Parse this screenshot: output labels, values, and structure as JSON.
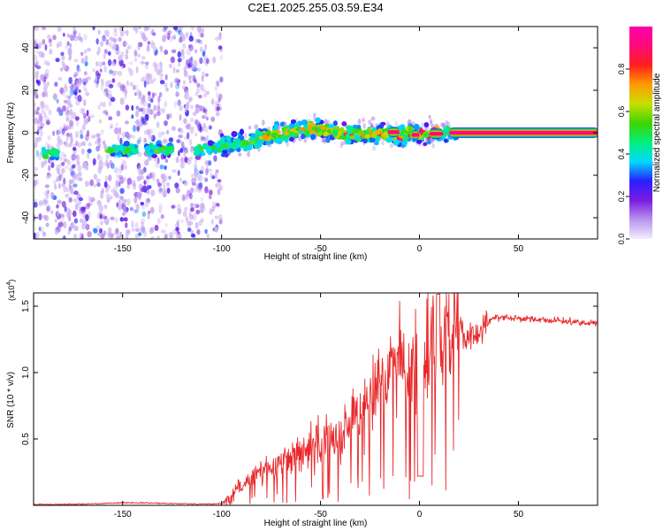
{
  "figure_title": "C2E1.2025.255.03.59.E34",
  "chart_data": [
    {
      "type": "heatmap",
      "name": "spectrogram",
      "title": "C2E1.2025.255.03.59.E34",
      "xlabel": "Height of straight line (km)",
      "ylabel": "Frequency (Hz)",
      "xlim": [
        -195,
        90
      ],
      "ylim": [
        -50,
        50
      ],
      "xticks": [
        -150,
        -100,
        -50,
        0,
        50
      ],
      "xtick_labels": [
        "-150",
        "-100",
        "-50",
        "0",
        "50"
      ],
      "yticks": [
        -40,
        -20,
        0,
        20,
        40
      ],
      "ytick_labels": [
        "-40",
        "-20",
        "0",
        "20",
        "40"
      ],
      "colorbar": {
        "label": "Normalized spectral amplitude",
        "range": [
          0,
          1
        ],
        "ticks": [
          0.0,
          0.2,
          0.4,
          0.6,
          0.8
        ],
        "tick_labels": [
          "0.0",
          "0.2",
          "0.4",
          "0.6",
          "0.8"
        ],
        "colors": [
          "#f4eefb",
          "#b894ee",
          "#7a1be0",
          "#2a1fff",
          "#00d9ff",
          "#00f07a",
          "#3fd400",
          "#c6e000",
          "#ff9a00",
          "#ff2020",
          "#ff0a7a",
          "#ff00a8"
        ]
      },
      "ridge": {
        "description_points_x": [
          -185,
          -150,
          -110,
          -90,
          -70,
          -55,
          -40,
          -25,
          -15,
          -10,
          -5,
          0,
          10,
          20,
          90
        ],
        "description_points_y": [
          -10,
          -8,
          -8,
          -5,
          0,
          2,
          0,
          -1,
          0,
          -2,
          0,
          -1,
          0,
          0,
          0
        ]
      }
    },
    {
      "type": "line",
      "name": "snr",
      "xlabel": "Height of straight line (km)",
      "ylabel": "SNR (10 * v/v)",
      "y_multiplier_label": "(x10",
      "y_multiplier_exponent": "4",
      "y_multiplier_close": ")",
      "xlim": [
        -195,
        90
      ],
      "ylim": [
        0,
        16000
      ],
      "xticks": [
        -150,
        -100,
        -50,
        0,
        50
      ],
      "xtick_labels": [
        "-150",
        "-100",
        "-50",
        "0",
        "50"
      ],
      "yticks": [
        5000,
        10000,
        15000
      ],
      "ytick_labels": [
        "0.5",
        "1.0",
        "1.5"
      ],
      "line_color": "#e8282a",
      "series": [
        {
          "name": "SNR",
          "x": [
            -195,
            -180,
            -160,
            -150,
            -130,
            -110,
            -100,
            -95,
            -90,
            -80,
            -70,
            -60,
            -50,
            -40,
            -30,
            -20,
            -15,
            -10,
            -5,
            0,
            5,
            10,
            15,
            20,
            25,
            30,
            35,
            40,
            50,
            60,
            70,
            80,
            90
          ],
          "y": [
            60,
            80,
            130,
            200,
            160,
            100,
            120,
            900,
            1500,
            2600,
            3200,
            4000,
            4800,
            5600,
            6800,
            8500,
            10500,
            11000,
            9000,
            11500,
            12000,
            13000,
            13500,
            13000,
            12500,
            13000,
            14000,
            14200,
            14100,
            14000,
            13900,
            13800,
            13700
          ]
        }
      ]
    }
  ]
}
